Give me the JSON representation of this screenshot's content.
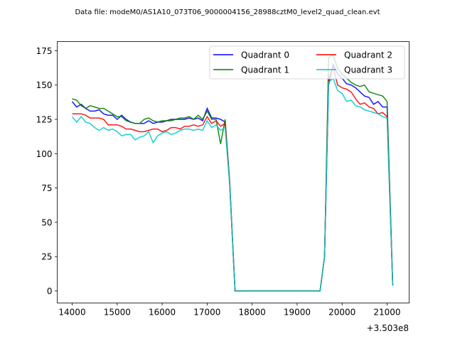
{
  "chart_data": {
    "type": "line",
    "title": "Data file: modeM0/AS1A10_073T06_9000004156_28988cztM0_level2_quad_clean.evt",
    "xlabel": "",
    "ylabel": "",
    "x_offset_label": "+3.503e8",
    "xlim": [
      13668,
      21490
    ],
    "ylim": [
      -8.8,
      181.7
    ],
    "xticks": [
      14000,
      15000,
      16000,
      17000,
      18000,
      19000,
      20000,
      21000
    ],
    "yticks": [
      0,
      25,
      50,
      75,
      100,
      125,
      150,
      175
    ],
    "grid": false,
    "legend": {
      "placement": "top-right",
      "columns": 2
    },
    "segments_x": {
      "a": [
        14000,
        14100,
        14200,
        14300,
        14400,
        14500,
        14600,
        14700,
        14800,
        14900,
        15000,
        15100,
        15200,
        15300,
        15400,
        15500,
        15600,
        15700,
        15800,
        15900,
        16000,
        16100,
        16200,
        16300,
        16400,
        16500,
        16600,
        16700,
        16800,
        16900,
        17000,
        17100,
        17200,
        17300,
        17400,
        17500,
        17620,
        19510,
        19610,
        19700,
        19800,
        19900,
        20000,
        20100,
        20200,
        20300,
        20400,
        20500,
        20600,
        20700,
        20800,
        20900,
        21000,
        21125
      ]
    },
    "series": [
      {
        "name": "Quadrant 0",
        "color": "#0000ff",
        "values": [
          138,
          134,
          136,
          133,
          131,
          131,
          132,
          129,
          128,
          128,
          125,
          128,
          125,
          123,
          122,
          122,
          122,
          124,
          122,
          123,
          123,
          124,
          125,
          125,
          125,
          125,
          126,
          125,
          126,
          124,
          133,
          126,
          126,
          125,
          123,
          80,
          0,
          0,
          25,
          150,
          165,
          158,
          155,
          151,
          150,
          148,
          145,
          142,
          141,
          136,
          138,
          134,
          134,
          4
        ]
      },
      {
        "name": "Quadrant 1",
        "color": "#008000",
        "values": [
          140,
          139,
          135,
          133,
          135,
          134,
          133,
          133,
          131,
          129,
          127,
          127,
          124,
          123,
          122,
          122,
          125,
          126,
          124,
          123,
          124,
          124,
          124,
          125,
          126,
          126,
          127,
          125,
          128,
          125,
          131,
          125,
          125,
          107,
          125,
          80,
          0,
          0,
          25,
          170,
          172,
          162,
          158,
          155,
          152,
          150,
          149,
          150,
          145,
          144,
          143,
          142,
          138,
          4
        ]
      },
      {
        "name": "Quadrant 2",
        "color": "#ff0000",
        "values": [
          129,
          129,
          129,
          128,
          126,
          126,
          126,
          125,
          121,
          121,
          121,
          120,
          118,
          118,
          117,
          116,
          116,
          117,
          118,
          118,
          116,
          117,
          119,
          119,
          118,
          120,
          120,
          121,
          120,
          121,
          127,
          122,
          124,
          120,
          122,
          78,
          0,
          0,
          25,
          155,
          163,
          150,
          148,
          147,
          145,
          140,
          136,
          137,
          134,
          133,
          129,
          130,
          127,
          4
        ]
      },
      {
        "name": "Quadrant 3",
        "color": "#00cccc",
        "values": [
          127,
          123,
          127,
          123,
          122,
          119,
          117,
          119,
          117,
          118,
          116,
          113,
          114,
          114,
          110,
          112,
          113,
          116,
          108,
          113,
          115,
          116,
          114,
          115,
          117,
          118,
          118,
          117,
          118,
          117,
          124,
          119,
          121,
          117,
          119,
          78,
          0,
          0,
          25,
          152,
          155,
          146,
          144,
          138,
          139,
          135,
          134,
          132,
          131,
          130,
          129,
          127,
          126,
          4
        ]
      }
    ]
  }
}
